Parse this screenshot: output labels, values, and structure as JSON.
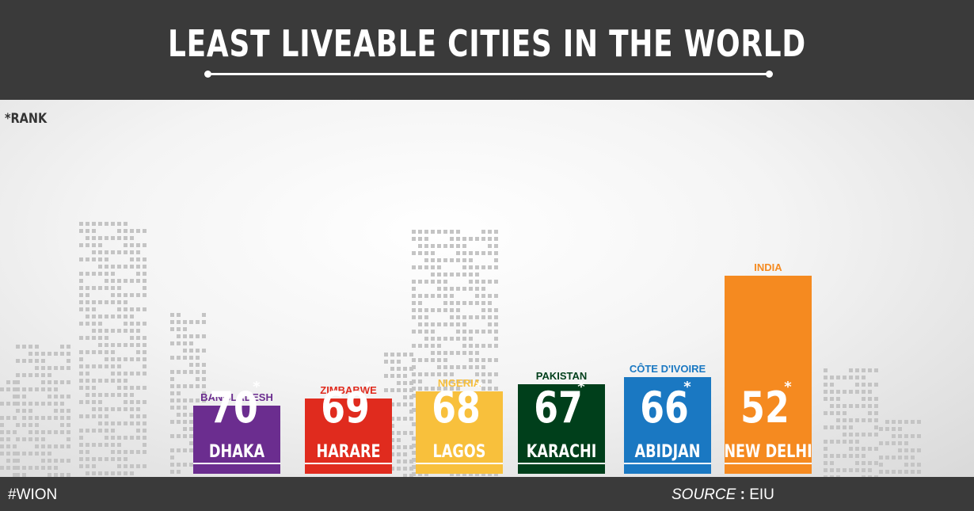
{
  "header": {
    "title": "LEAST LIVEABLE CITIES IN THE WORLD"
  },
  "note": "*RANK",
  "footer": {
    "hashtag": "#WION",
    "source_label": "SOURCE",
    "source_sep": ":",
    "source_value": "EIU"
  },
  "chart_data": {
    "type": "bar",
    "title": "LEAST LIVEABLE CITIES IN THE WORLD",
    "categories": [
      "DHAKA",
      "HARARE",
      "LAGOS",
      "KARACHI",
      "ABIDJAN",
      "NEW DELHI"
    ],
    "countries": [
      "BANGLADESH",
      "ZIMBABWE",
      "NIGERIA",
      "PAKISTAN",
      "CÔTE D'IVOIRE",
      "INDIA"
    ],
    "values": [
      70,
      69,
      68,
      67,
      66,
      52
    ],
    "value_suffix": "*",
    "colors": [
      "#6b2d8f",
      "#e02b1e",
      "#f8c03c",
      "#003f1b",
      "#1a78c2",
      "#f58a20"
    ],
    "country_label_colors": [
      "#6b2d8f",
      "#e02b1e",
      "#f8c03c",
      "#003f1b",
      "#1a78c2",
      "#f58a20"
    ],
    "xlabel": "",
    "ylabel": "",
    "grid": false,
    "legend": "none"
  }
}
